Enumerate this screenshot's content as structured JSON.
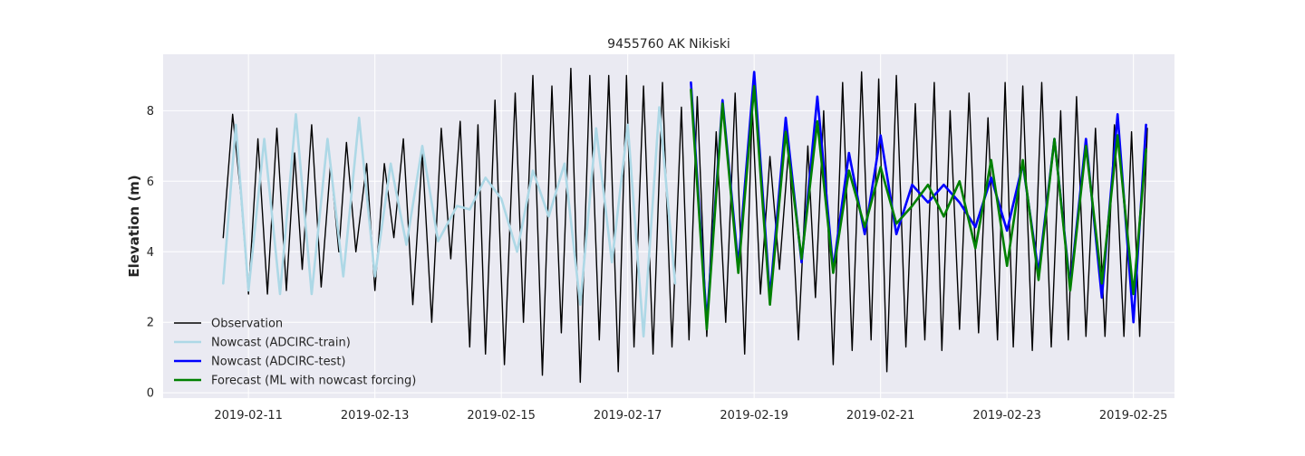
{
  "chart_data": {
    "type": "line",
    "title": "9455760 AK Nikiski",
    "xlabel": "",
    "ylabel": "Elevation (m)",
    "x_unit": "days since 2019-02-10 00:00",
    "xlim": [
      -0.35,
      15.65
    ],
    "ylim": [
      -0.15,
      9.6
    ],
    "x_ticks": [
      {
        "value": 1,
        "label": "2019-02-11"
      },
      {
        "value": 3,
        "label": "2019-02-13"
      },
      {
        "value": 5,
        "label": "2019-02-15"
      },
      {
        "value": 7,
        "label": "2019-02-17"
      },
      {
        "value": 9,
        "label": "2019-02-19"
      },
      {
        "value": 11,
        "label": "2019-02-21"
      },
      {
        "value": 13,
        "label": "2019-02-23"
      },
      {
        "value": 15,
        "label": "2019-02-25"
      }
    ],
    "y_ticks": [
      0,
      2,
      4,
      6,
      8
    ],
    "grid": true,
    "legend_position": "lower-left",
    "series": [
      {
        "name": "Observation",
        "color": "#000000",
        "style": "thin",
        "x": [
          0.6,
          0.75,
          0.88,
          1.0,
          1.15,
          1.3,
          1.45,
          1.6,
          1.73,
          1.85,
          2.0,
          2.15,
          2.3,
          2.43,
          2.55,
          2.7,
          2.87,
          3.0,
          3.15,
          3.3,
          3.45,
          3.6,
          3.75,
          3.9,
          4.05,
          4.2,
          4.35,
          4.5,
          4.63,
          4.75,
          4.9,
          5.05,
          5.22,
          5.35,
          5.5,
          5.65,
          5.8,
          5.95,
          6.1,
          6.25,
          6.4,
          6.55,
          6.7,
          6.85,
          6.98,
          7.1,
          7.25,
          7.4,
          7.55,
          7.7,
          7.85,
          7.97,
          8.1,
          8.25,
          8.4,
          8.55,
          8.7,
          8.85,
          8.97,
          9.1,
          9.25,
          9.4,
          9.55,
          9.7,
          9.85,
          9.97,
          10.1,
          10.25,
          10.4,
          10.55,
          10.7,
          10.85,
          10.97,
          11.1,
          11.25,
          11.4,
          11.55,
          11.7,
          11.85,
          11.97,
          12.1,
          12.25,
          12.4,
          12.55,
          12.7,
          12.85,
          12.97,
          13.1,
          13.25,
          13.4,
          13.55,
          13.7,
          13.85,
          13.97,
          14.1,
          14.25,
          14.4,
          14.55,
          14.7,
          14.85,
          14.97,
          15.1,
          15.22
        ],
        "y": [
          4.4,
          7.9,
          5.6,
          2.8,
          7.2,
          2.8,
          7.5,
          2.9,
          6.8,
          3.5,
          7.6,
          3.0,
          6.5,
          4.0,
          7.1,
          4.0,
          6.5,
          2.9,
          6.5,
          4.4,
          7.2,
          2.5,
          6.8,
          2.0,
          7.5,
          3.8,
          7.7,
          1.3,
          7.6,
          1.1,
          8.3,
          0.8,
          8.5,
          2.0,
          9.0,
          0.5,
          8.7,
          1.7,
          9.2,
          0.3,
          9.0,
          1.5,
          9.0,
          0.6,
          9.0,
          1.3,
          8.7,
          1.1,
          8.8,
          1.3,
          8.1,
          1.5,
          8.4,
          1.6,
          7.4,
          2.0,
          8.5,
          1.1,
          8.1,
          2.8,
          6.7,
          3.5,
          7.0,
          1.5,
          7.0,
          2.7,
          8.0,
          0.8,
          8.8,
          1.2,
          9.1,
          1.5,
          8.9,
          0.6,
          9.0,
          1.3,
          8.2,
          1.5,
          8.8,
          1.2,
          8.0,
          1.8,
          8.5,
          1.7,
          7.8,
          1.5,
          8.8,
          1.3,
          8.7,
          1.2,
          8.8,
          1.3,
          8.0,
          1.5,
          8.4,
          1.6,
          7.5,
          1.6,
          7.6,
          1.6,
          7.4,
          1.6,
          7.5
        ]
      },
      {
        "name": "Nowcast (ADCIRC-train)",
        "color": "#add8e6",
        "style": "thick",
        "x": [
          0.6,
          0.8,
          1.0,
          1.25,
          1.5,
          1.75,
          2.0,
          2.25,
          2.5,
          2.75,
          3.0,
          3.25,
          3.5,
          3.75,
          4.0,
          4.3,
          4.5,
          4.75,
          5.0,
          5.25,
          5.5,
          5.75,
          6.0,
          6.25,
          6.5,
          6.75,
          7.0,
          7.25,
          7.5,
          7.75
        ],
        "y": [
          3.1,
          7.6,
          2.9,
          7.2,
          2.8,
          7.9,
          2.8,
          7.2,
          3.3,
          7.8,
          3.3,
          6.5,
          4.2,
          7.0,
          4.3,
          5.3,
          5.2,
          6.1,
          5.5,
          4.0,
          6.3,
          5.0,
          6.5,
          2.5,
          7.5,
          3.7,
          7.6,
          1.6,
          8.1,
          3.1
        ]
      },
      {
        "name": "Nowcast (ADCIRC-test)",
        "color": "#0000ff",
        "style": "thick",
        "x": [
          8.0,
          8.25,
          8.5,
          8.75,
          9.0,
          9.25,
          9.5,
          9.75,
          10.0,
          10.25,
          10.5,
          10.75,
          11.0,
          11.25,
          11.5,
          11.75,
          12.0,
          12.25,
          12.5,
          12.75,
          13.0,
          13.25,
          13.5,
          13.75,
          14.0,
          14.25,
          14.5,
          14.75,
          15.0,
          15.2
        ],
        "y": [
          8.8,
          2.0,
          8.3,
          3.6,
          9.1,
          2.7,
          7.8,
          3.7,
          8.4,
          3.5,
          6.8,
          4.5,
          7.3,
          4.5,
          5.9,
          5.4,
          5.9,
          5.4,
          4.7,
          6.1,
          4.6,
          6.5,
          3.4,
          7.2,
          3.0,
          7.2,
          2.7,
          7.9,
          2.0,
          7.6
        ]
      },
      {
        "name": "Forecast (ML with nowcast forcing)",
        "color": "#008000",
        "style": "thick",
        "x": [
          8.0,
          8.25,
          8.5,
          8.75,
          9.0,
          9.25,
          9.5,
          9.75,
          10.0,
          10.25,
          10.5,
          10.75,
          11.0,
          11.25,
          11.5,
          11.75,
          12.0,
          12.25,
          12.5,
          12.75,
          13.0,
          13.25,
          13.5,
          13.75,
          14.0,
          14.25,
          14.5,
          14.75,
          15.0,
          15.2
        ],
        "y": [
          8.6,
          1.8,
          8.2,
          3.4,
          8.7,
          2.5,
          7.4,
          3.8,
          7.7,
          3.4,
          6.3,
          4.7,
          6.4,
          4.8,
          5.3,
          5.9,
          5.0,
          6.0,
          4.1,
          6.6,
          3.6,
          6.6,
          3.2,
          7.2,
          2.9,
          7.0,
          3.1,
          7.3,
          2.8,
          6.9
        ]
      }
    ]
  }
}
